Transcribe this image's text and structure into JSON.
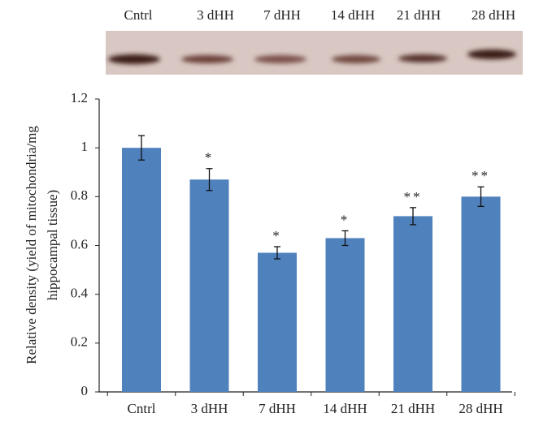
{
  "chart_data": {
    "type": "bar",
    "ylabel": [
      "Relative density (yield of mitochondria/mg",
      "hippocampal tissue)"
    ],
    "categories": [
      "Cntrl",
      "3 dHH",
      "7 dHH",
      "14 dHH",
      "21 dHH",
      "28 dHH"
    ],
    "values": [
      1.0,
      0.87,
      0.57,
      0.63,
      0.72,
      0.8
    ],
    "errors": [
      0.05,
      0.045,
      0.025,
      0.03,
      0.035,
      0.04
    ],
    "annotations": [
      null,
      "*",
      "*",
      "*",
      "**",
      "**"
    ],
    "color": "#4f81bd",
    "ylim": [
      0,
      1.2
    ],
    "yticks": [
      0,
      0.2,
      0.4,
      0.6,
      0.8,
      1,
      1.2
    ]
  }
}
